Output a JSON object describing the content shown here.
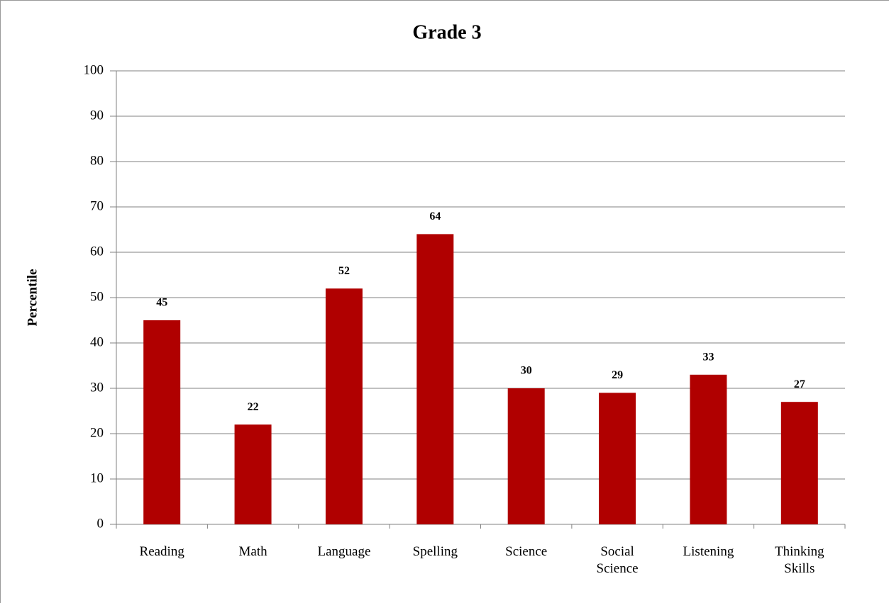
{
  "chart_data": {
    "type": "bar",
    "title": "Grade 3",
    "y_label": "Percentile",
    "categories": [
      "Reading",
      "Math",
      "Language",
      "Spelling",
      "Science",
      "Social Science",
      "Listening",
      "Thinking Skills"
    ],
    "values": [
      45,
      22,
      52,
      64,
      30,
      29,
      33,
      27
    ],
    "color": "#b00000",
    "ylim": [
      0,
      100
    ],
    "yticks": [
      0,
      10,
      20,
      30,
      40,
      50,
      60,
      70,
      80,
      90,
      100
    ],
    "grid": true
  }
}
